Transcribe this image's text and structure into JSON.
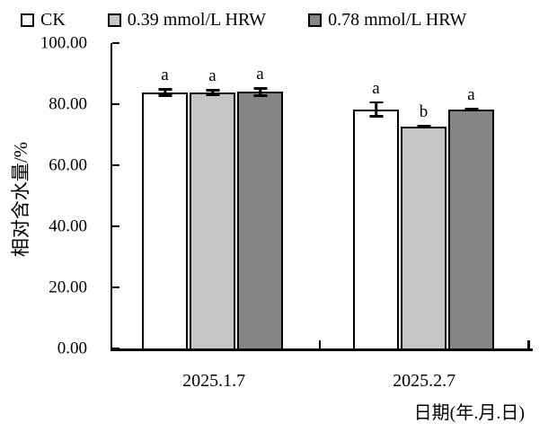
{
  "chart_data": {
    "type": "bar",
    "title": "",
    "categories": [
      "2025.1.7",
      "2025.2.7"
    ],
    "series": [
      {
        "name": "CK",
        "color": "#ffffff",
        "values": [
          83.8,
          78.3
        ],
        "errors": [
          1.4,
          2.6
        ],
        "sig_letters": [
          "a",
          "a"
        ]
      },
      {
        "name": "0.39 mmol/L HRW",
        "color": "#c6c6c6",
        "values": [
          83.8,
          72.7
        ],
        "errors": [
          1.2,
          0.5
        ],
        "sig_letters": [
          "a",
          "b"
        ]
      },
      {
        "name": "0.78 mmol/L HRW",
        "color": "#858585",
        "values": [
          84.0,
          78.2
        ],
        "errors": [
          1.5,
          0.6
        ],
        "sig_letters": [
          "a",
          "a"
        ]
      }
    ],
    "xlabel": "日期(年.月.日)",
    "ylabel": "相对含水量/%",
    "ylim": [
      0,
      100
    ],
    "yticks": [
      "100.00",
      "80.00",
      "60.00",
      "40.00",
      "20.00",
      "0.00"
    ],
    "grid": false,
    "legend_position": "top-left",
    "error_bars": true,
    "bar_border_color": "#000000"
  }
}
